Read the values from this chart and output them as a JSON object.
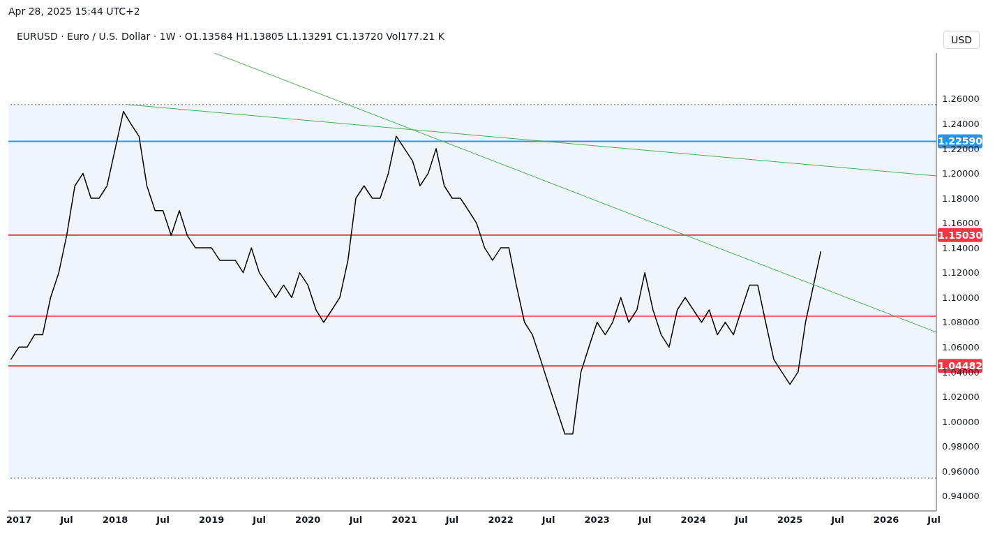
{
  "chart_data": {
    "type": "line",
    "subtitle": "Apr 28, 2025 15:44 UTC+2",
    "title": "EURUSD · Euro / U.S. Dollar · 1W · O1.13584  H1.13805  L1.13291  C1.13720  Vol177.21 K",
    "ylabel": "USD",
    "xlim": [
      "2016-11-22",
      "2026-07-10"
    ],
    "xticks": [
      {
        "value": "2017-01-01",
        "label": "2017"
      },
      {
        "value": "2017-07-01",
        "label": "Jul"
      },
      {
        "value": "2018-01-01",
        "label": "2018"
      },
      {
        "value": "2018-07-01",
        "label": "Jul"
      },
      {
        "value": "2019-01-01",
        "label": "2019"
      },
      {
        "value": "2019-07-01",
        "label": "Jul"
      },
      {
        "value": "2020-01-01",
        "label": "2020"
      },
      {
        "value": "2020-07-01",
        "label": "Jul"
      },
      {
        "value": "2021-01-01",
        "label": "2021"
      },
      {
        "value": "2021-07-01",
        "label": "Jul"
      },
      {
        "value": "2022-01-01",
        "label": "2022"
      },
      {
        "value": "2022-07-01",
        "label": "Jul"
      },
      {
        "value": "2023-01-01",
        "label": "2023"
      },
      {
        "value": "2023-07-01",
        "label": "Jul"
      },
      {
        "value": "2024-01-01",
        "label": "2024"
      },
      {
        "value": "2024-07-01",
        "label": "Jul"
      },
      {
        "value": "2025-01-01",
        "label": "2025"
      },
      {
        "value": "2025-07-01",
        "label": "Jul"
      },
      {
        "value": "2026-01-01",
        "label": "2026"
      },
      {
        "value": "2026-07-01",
        "label": "Jul"
      }
    ],
    "ylim": [
      0.928,
      1.297
    ],
    "yticks": [
      {
        "value": 0.94,
        "label": "0.94000"
      },
      {
        "value": 0.96,
        "label": "0.96000"
      },
      {
        "value": 0.98,
        "label": "0.98000"
      },
      {
        "value": 1.0,
        "label": "1.00000"
      },
      {
        "value": 1.02,
        "label": "1.02000"
      },
      {
        "value": 1.04,
        "label": "1.04000"
      },
      {
        "value": 1.06,
        "label": "1.06000"
      },
      {
        "value": 1.08,
        "label": "1.08000"
      },
      {
        "value": 1.1,
        "label": "1.10000"
      },
      {
        "value": 1.12,
        "label": "1.12000"
      },
      {
        "value": 1.14,
        "label": "1.14000"
      },
      {
        "value": 1.16,
        "label": "1.16000"
      },
      {
        "value": 1.18,
        "label": "1.18000"
      },
      {
        "value": 1.2,
        "label": "1.20000"
      },
      {
        "value": 1.22,
        "label": "1.22000"
      },
      {
        "value": 1.24,
        "label": "1.24000"
      },
      {
        "value": 1.26,
        "label": "1.26000"
      }
    ],
    "line_style": "solid",
    "series": [
      {
        "color": "#000000",
        "x": [
          "2016-12",
          "2017-01",
          "2017-02",
          "2017-03",
          "2017-04",
          "2017-05",
          "2017-06",
          "2017-07",
          "2017-08",
          "2017-09",
          "2017-10",
          "2017-11",
          "2017-12",
          "2018-01",
          "2018-02",
          "2018-03",
          "2018-04",
          "2018-05",
          "2018-06",
          "2018-07",
          "2018-08",
          "2018-09",
          "2018-10",
          "2018-11",
          "2018-12",
          "2019-01",
          "2019-02",
          "2019-03",
          "2019-04",
          "2019-05",
          "2019-06",
          "2019-07",
          "2019-08",
          "2019-09",
          "2019-10",
          "2019-11",
          "2019-12",
          "2020-01",
          "2020-02",
          "2020-03",
          "2020-04",
          "2020-05",
          "2020-06",
          "2020-07",
          "2020-08",
          "2020-09",
          "2020-10",
          "2020-11",
          "2020-12",
          "2021-01",
          "2021-02",
          "2021-03",
          "2021-04",
          "2021-05",
          "2021-06",
          "2021-07",
          "2021-08",
          "2021-09",
          "2021-10",
          "2021-11",
          "2021-12",
          "2022-01",
          "2022-02",
          "2022-03",
          "2022-04",
          "2022-05",
          "2022-06",
          "2022-07",
          "2022-08",
          "2022-09",
          "2022-10",
          "2022-11",
          "2022-12",
          "2023-01",
          "2023-02",
          "2023-03",
          "2023-04",
          "2023-05",
          "2023-06",
          "2023-07",
          "2023-08",
          "2023-09",
          "2023-10",
          "2023-11",
          "2023-12",
          "2024-01",
          "2024-02",
          "2024-03",
          "2024-04",
          "2024-05",
          "2024-06",
          "2024-07",
          "2024-08",
          "2024-09",
          "2024-10",
          "2024-11",
          "2024-12",
          "2025-01",
          "2025-02",
          "2025-03",
          "2025-04-28"
        ],
        "values": [
          1.05,
          1.06,
          1.06,
          1.07,
          1.07,
          1.1,
          1.12,
          1.15,
          1.19,
          1.2,
          1.18,
          1.18,
          1.19,
          1.22,
          1.25,
          1.24,
          1.23,
          1.19,
          1.17,
          1.17,
          1.15,
          1.17,
          1.15,
          1.14,
          1.14,
          1.14,
          1.13,
          1.13,
          1.13,
          1.12,
          1.14,
          1.12,
          1.11,
          1.1,
          1.11,
          1.1,
          1.12,
          1.11,
          1.09,
          1.08,
          1.09,
          1.1,
          1.13,
          1.18,
          1.19,
          1.18,
          1.18,
          1.2,
          1.23,
          1.22,
          1.21,
          1.19,
          1.2,
          1.22,
          1.19,
          1.18,
          1.18,
          1.17,
          1.16,
          1.14,
          1.13,
          1.14,
          1.14,
          1.11,
          1.08,
          1.07,
          1.05,
          1.03,
          1.01,
          0.99,
          0.99,
          1.04,
          1.06,
          1.08,
          1.07,
          1.08,
          1.1,
          1.08,
          1.09,
          1.12,
          1.09,
          1.07,
          1.06,
          1.09,
          1.1,
          1.09,
          1.08,
          1.09,
          1.07,
          1.08,
          1.07,
          1.09,
          1.11,
          1.11,
          1.08,
          1.05,
          1.04,
          1.03,
          1.04,
          1.08,
          1.1372
        ]
      },
      {
        "type": "line",
        "color": "#4caf50",
        "x": [
          "2018-02-15",
          "2026-07-10"
        ],
        "values": [
          1.2555,
          1.198
        ]
      },
      {
        "type": "line",
        "color": "#4caf50",
        "x": [
          "2019-01-12",
          "2026-07-10"
        ],
        "values": [
          1.297,
          1.072
        ]
      }
    ],
    "ref_lines": [
      {
        "axis": "y",
        "value": 1.2259,
        "label": "1.22590",
        "color": "#2196f3"
      },
      {
        "axis": "y",
        "value": 1.1503,
        "label": "1.15030",
        "color": "#f23645"
      },
      {
        "axis": "y",
        "value": 1.04482,
        "label": "1.04482",
        "color": "#f23645"
      },
      {
        "axis": "y",
        "value": 1.085,
        "color": "#f23645"
      },
      {
        "axis": "y",
        "value": 1.2555,
        "color": "#9598a1",
        "line_style": "dotted"
      },
      {
        "axis": "y",
        "value": 0.9545,
        "color": "#9598a1",
        "line_style": "dotted"
      }
    ],
    "bands": [
      {
        "axis": "y",
        "from": 0.9545,
        "to": 1.2555,
        "color": "#eef6fb"
      }
    ]
  }
}
